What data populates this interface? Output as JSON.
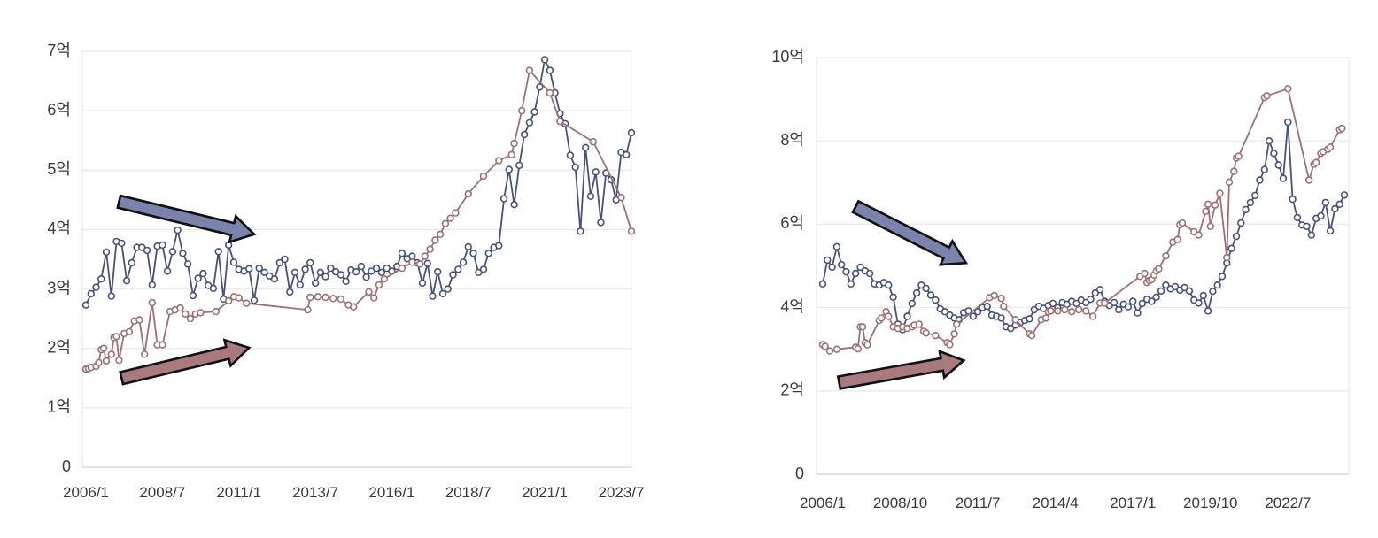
{
  "figure": {
    "background": "#ffffff",
    "grid_color": "#ebebeb",
    "axis_color": "#d9d9d9",
    "tick_label_color": "#3a3a3a"
  },
  "chart_data": [
    {
      "type": "line",
      "name": "left-chart",
      "title": "",
      "xlabel": "",
      "ylabel": "",
      "grid": true,
      "legend": "none",
      "x_axis": {
        "start": "2006/1",
        "tick_labels": [
          "2006/1",
          "2008/7",
          "2011/1",
          "2013/7",
          "2016/1",
          "2018/7",
          "2021/1",
          "2023/7"
        ],
        "tick_interval_months": 30,
        "total_months": 215
      },
      "y_axis": {
        "tick_labels": [
          "7억",
          "6억",
          "5억",
          "4억",
          "3억",
          "2억",
          "1억",
          "0"
        ],
        "min": 0,
        "max": 7,
        "step": 1,
        "unit": "억"
      },
      "series": [
        {
          "name": "blue-series",
          "color": "#47517e",
          "marker": "circle-open",
          "sample_step_months": 2,
          "values": [
            2.73,
            2.92,
            3.03,
            3.17,
            3.62,
            2.88,
            3.8,
            3.77,
            3.14,
            3.44,
            3.7,
            3.7,
            3.65,
            3.07,
            3.72,
            3.74,
            3.3,
            3.63,
            3.99,
            3.6,
            3.42,
            2.89,
            3.18,
            3.26,
            3.06,
            3.01,
            3.63,
            2.83,
            3.74,
            3.45,
            3.33,
            3.3,
            3.34,
            2.81,
            3.35,
            3.28,
            3.22,
            3.17,
            3.44,
            3.5,
            2.95,
            3.28,
            3.07,
            3.33,
            3.44,
            3.1,
            3.28,
            3.21,
            3.35,
            3.29,
            3.24,
            3.13,
            3.32,
            3.29,
            3.38,
            3.2,
            3.3,
            3.35,
            3.28,
            3.35,
            3.3,
            3.38,
            3.6,
            3.51,
            3.55,
            3.44,
            3.1,
            3.43,
            2.88,
            3.29,
            2.92,
            3.0,
            3.24,
            3.33,
            3.45,
            3.71,
            3.6,
            3.28,
            3.33,
            3.6,
            3.7,
            3.73,
            4.52,
            5.01,
            4.42,
            5.08,
            5.6,
            5.8,
            5.98,
            6.4,
            6.86,
            6.68,
            6.3,
            5.95,
            5.78,
            5.25,
            5.05,
            3.97,
            5.38,
            4.56,
            4.97,
            4.12,
            4.95,
            4.84,
            4.5,
            5.3,
            5.26,
            5.63
          ]
        },
        {
          "name": "red-series",
          "color": "#9d7172",
          "marker": "circle-open",
          "points": [
            [
              0,
              1.65
            ],
            [
              1,
              1.66
            ],
            [
              2,
              1.68
            ],
            [
              4,
              1.7
            ],
            [
              5,
              1.76
            ],
            [
              6,
              1.98
            ],
            [
              7,
              2.0
            ],
            [
              8,
              1.79
            ],
            [
              10,
              1.9
            ],
            [
              11,
              2.18
            ],
            [
              12,
              2.2
            ],
            [
              13,
              1.8
            ],
            [
              15,
              2.25
            ],
            [
              17,
              2.28
            ],
            [
              19,
              2.46
            ],
            [
              21,
              2.48
            ],
            [
              23,
              1.9
            ],
            [
              26,
              2.77
            ],
            [
              28,
              2.06
            ],
            [
              30,
              2.06
            ],
            [
              33,
              2.62
            ],
            [
              35,
              2.65
            ],
            [
              37,
              2.68
            ],
            [
              39,
              2.58
            ],
            [
              41,
              2.5
            ],
            [
              43,
              2.58
            ],
            [
              45,
              2.6
            ],
            [
              51,
              2.62
            ],
            [
              56,
              2.8
            ],
            [
              58,
              2.87
            ],
            [
              60,
              2.85
            ],
            [
              63,
              2.76
            ],
            [
              87,
              2.65
            ],
            [
              88,
              2.86
            ],
            [
              91,
              2.87
            ],
            [
              94,
              2.86
            ],
            [
              97,
              2.84
            ],
            [
              100,
              2.83
            ],
            [
              103,
              2.73
            ],
            [
              105,
              2.7
            ],
            [
              111,
              2.95
            ],
            [
              113,
              2.85
            ],
            [
              115,
              3.07
            ],
            [
              117,
              3.17
            ],
            [
              124,
              3.35
            ],
            [
              128,
              3.45
            ],
            [
              131,
              3.42
            ],
            [
              133,
              3.55
            ],
            [
              135,
              3.67
            ],
            [
              137,
              3.82
            ],
            [
              139,
              3.92
            ],
            [
              141,
              4.1
            ],
            [
              143,
              4.19
            ],
            [
              145,
              4.28
            ],
            [
              150,
              4.6
            ],
            [
              156,
              4.9
            ],
            [
              162,
              5.16
            ],
            [
              167,
              5.26
            ],
            [
              168,
              5.45
            ],
            [
              171,
              6.0
            ],
            [
              174,
              6.68
            ],
            [
              182,
              6.3
            ],
            [
              186,
              5.82
            ],
            [
              199,
              5.48
            ],
            [
              210,
              4.54
            ],
            [
              214,
              3.97
            ]
          ]
        }
      ],
      "annotations": [
        {
          "type": "arrow",
          "name": "blue-trend-arrow",
          "fill": "#7b82ab",
          "outline": "#111111",
          "from": [
            13,
            4.47
          ],
          "to": [
            66,
            3.92
          ]
        },
        {
          "type": "arrow",
          "name": "red-trend-arrow",
          "fill": "#a87a7d",
          "outline": "#111111",
          "from": [
            14,
            1.5
          ],
          "to": [
            64,
            2.01
          ]
        }
      ]
    },
    {
      "type": "line",
      "name": "right-chart",
      "title": "",
      "xlabel": "",
      "ylabel": "",
      "grid": true,
      "legend": "none",
      "x_axis": {
        "start": "2006/1",
        "tick_labels": [
          "2006/1",
          "2008/10",
          "2011/7",
          "2014/4",
          "2017/1",
          "2019/10",
          "2022/7"
        ],
        "tick_interval_months": 33,
        "total_months": 223
      },
      "y_axis": {
        "tick_labels": [
          "10억",
          "8억",
          "6억",
          "4억",
          "2억",
          "0"
        ],
        "min": 0,
        "max": 10,
        "step": 2,
        "unit": "억"
      },
      "series": [
        {
          "name": "blue-series",
          "color": "#47517e",
          "marker": "circle-open",
          "sample_step_months": 2,
          "values": [
            4.57,
            5.14,
            4.97,
            5.46,
            5.03,
            4.86,
            4.57,
            4.82,
            4.97,
            4.88,
            4.82,
            4.57,
            4.54,
            4.6,
            4.54,
            4.25,
            3.6,
            3.47,
            3.79,
            4.1,
            4.35,
            4.54,
            4.46,
            4.3,
            4.18,
            3.97,
            3.9,
            3.82,
            3.75,
            3.71,
            3.88,
            3.92,
            3.79,
            3.9,
            4.0,
            4.03,
            3.82,
            3.79,
            3.75,
            3.54,
            3.5,
            3.58,
            3.64,
            3.69,
            3.73,
            3.95,
            4.03,
            3.98,
            4.05,
            4.1,
            4.0,
            4.12,
            4.08,
            4.15,
            4.1,
            4.18,
            4.12,
            4.2,
            4.35,
            4.43,
            4.15,
            4.05,
            4.12,
            3.95,
            4.08,
            4.02,
            4.15,
            3.87,
            4.1,
            4.2,
            4.15,
            4.25,
            4.4,
            4.54,
            4.45,
            4.5,
            4.42,
            4.48,
            4.4,
            4.18,
            4.11,
            4.29,
            3.92,
            4.39,
            4.54,
            4.75,
            5.07,
            5.42,
            5.71,
            6.03,
            6.35,
            6.52,
            6.69,
            7.06,
            7.31,
            8.0,
            7.7,
            7.42,
            7.1,
            8.45,
            6.6,
            6.16,
            5.98,
            5.95,
            5.74,
            6.14,
            6.2,
            6.52,
            5.84,
            6.37,
            6.48,
            6.7
          ]
        },
        {
          "name": "red-series",
          "color": "#9d7172",
          "marker": "circle-open",
          "points": [
            [
              0,
              3.11
            ],
            [
              1,
              3.07
            ],
            [
              3,
              2.96
            ],
            [
              6,
              3.0
            ],
            [
              14,
              3.05
            ],
            [
              15,
              3.01
            ],
            [
              16,
              3.54
            ],
            [
              17,
              3.54
            ],
            [
              18,
              3.16
            ],
            [
              19,
              3.11
            ],
            [
              24,
              3.69
            ],
            [
              25,
              3.75
            ],
            [
              27,
              3.9
            ],
            [
              28,
              3.79
            ],
            [
              30,
              3.54
            ],
            [
              32,
              3.5
            ],
            [
              34,
              3.54
            ],
            [
              36,
              3.5
            ],
            [
              38,
              3.54
            ],
            [
              39,
              3.58
            ],
            [
              41,
              3.6
            ],
            [
              43,
              3.43
            ],
            [
              44,
              3.39
            ],
            [
              48,
              3.33
            ],
            [
              53,
              3.16
            ],
            [
              54,
              3.11
            ],
            [
              56,
              3.37
            ],
            [
              57,
              3.6
            ],
            [
              71,
              4.24
            ],
            [
              73,
              4.29
            ],
            [
              76,
              4.22
            ],
            [
              77,
              4.03
            ],
            [
              82,
              3.71
            ],
            [
              88,
              3.37
            ],
            [
              89,
              3.33
            ],
            [
              93,
              3.71
            ],
            [
              95,
              3.75
            ],
            [
              96,
              3.9
            ],
            [
              97,
              3.92
            ],
            [
              100,
              3.92
            ],
            [
              103,
              3.95
            ],
            [
              106,
              3.9
            ],
            [
              109,
              3.95
            ],
            [
              112,
              3.92
            ],
            [
              115,
              3.79
            ],
            [
              118,
              4.11
            ],
            [
              120,
              4.11
            ],
            [
              135,
              4.75
            ],
            [
              137,
              4.82
            ],
            [
              138,
              4.6
            ],
            [
              139,
              4.65
            ],
            [
              140,
              4.67
            ],
            [
              141,
              4.78
            ],
            [
              142,
              4.88
            ],
            [
              143,
              4.93
            ],
            [
              146,
              5.24
            ],
            [
              149,
              5.57
            ],
            [
              151,
              5.63
            ],
            [
              152,
              5.99
            ],
            [
              153,
              6.03
            ],
            [
              158,
              5.82
            ],
            [
              160,
              5.74
            ],
            [
              163,
              6.31
            ],
            [
              164,
              6.48
            ],
            [
              165,
              5.95
            ],
            [
              167,
              6.46
            ],
            [
              169,
              6.74
            ],
            [
              172,
              5.2
            ],
            [
              173,
              7.01
            ],
            [
              175,
              7.27
            ],
            [
              176,
              7.59
            ],
            [
              177,
              7.63
            ],
            [
              188,
              9.04
            ],
            [
              189,
              9.08
            ],
            [
              198,
              9.25
            ],
            [
              207,
              7.06
            ],
            [
              209,
              7.44
            ],
            [
              210,
              7.48
            ],
            [
              212,
              7.7
            ],
            [
              213,
              7.74
            ],
            [
              215,
              7.8
            ],
            [
              216,
              7.85
            ],
            [
              220,
              8.27
            ],
            [
              221,
              8.3
            ]
          ]
        }
      ],
      "annotations": [
        {
          "type": "arrow",
          "name": "blue-trend-arrow",
          "fill": "#7b82ab",
          "outline": "#111111",
          "from": [
            14,
            6.42
          ],
          "to": [
            61,
            5.07
          ]
        },
        {
          "type": "arrow",
          "name": "red-trend-arrow",
          "fill": "#a87a7d",
          "outline": "#111111",
          "from": [
            7,
            2.2
          ],
          "to": [
            60,
            2.73
          ]
        }
      ]
    }
  ]
}
